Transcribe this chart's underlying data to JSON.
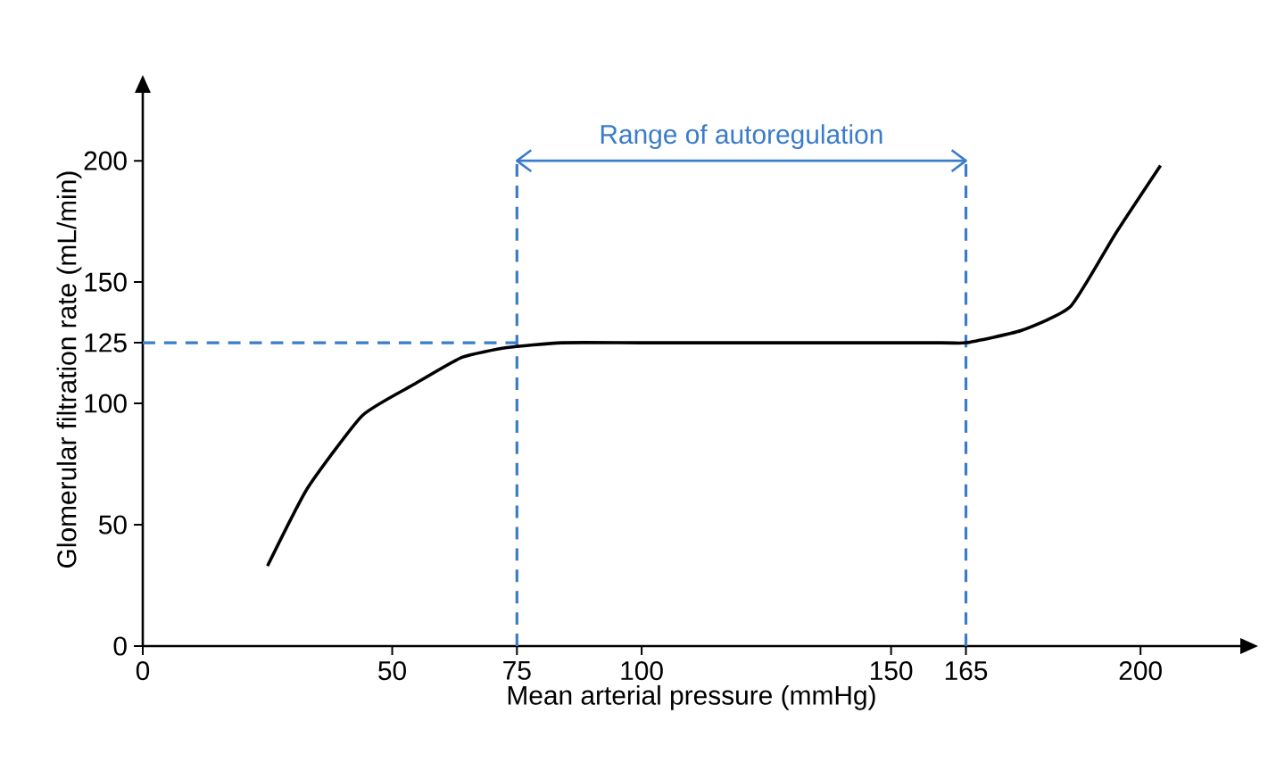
{
  "chart_data": {
    "type": "line",
    "xlabel": "Mean arterial pressure (mmHg)",
    "ylabel": "Glomerular filtration rate (mL/min)",
    "annotations": [
      {
        "text": "Range of autoregulation",
        "x": 120,
        "y": 200
      }
    ],
    "series": [
      {
        "color": "#000000",
        "x": [
          25,
          33,
          44,
          54.5,
          64,
          73,
          84,
          100,
          130,
          160,
          165,
          176,
          186,
          195,
          204
        ],
        "values": [
          33,
          65,
          95,
          108,
          119,
          123,
          125,
          125,
          125,
          125,
          125,
          130,
          140,
          170,
          198
        ]
      },
      {
        "type": "line",
        "color": "#3a7cc9",
        "x": [
          75,
          165
        ],
        "values": [
          200,
          200
        ]
      }
    ],
    "xlim": [
      0,
      220
    ],
    "ylim": [
      0,
      228
    ],
    "xticks": [
      0,
      50,
      75,
      100,
      150,
      165,
      200
    ],
    "yticks": [
      0,
      50,
      100,
      125,
      150,
      200
    ],
    "ref_lines": [
      {
        "axis": "y",
        "value": 125,
        "color": "#3a7cc9",
        "line_style": "dashed"
      },
      {
        "axis": "x",
        "value": 75,
        "color": "#3a7cc9",
        "line_style": "dashed"
      },
      {
        "axis": "x",
        "value": 165,
        "color": "#3a7cc9",
        "line_style": "dashed"
      }
    ],
    "grid": false,
    "marker": "none",
    "line_style": "solid"
  }
}
